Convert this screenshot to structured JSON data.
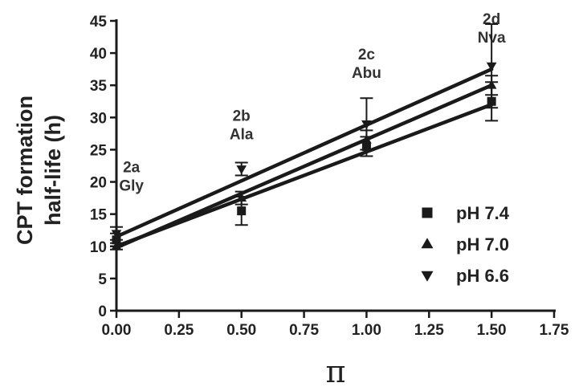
{
  "chart_data": {
    "type": "line",
    "title": "",
    "xlabel": "π",
    "ylabel": [
      "CPT formation",
      "half-life (h)"
    ],
    "xlim": [
      0,
      1.75
    ],
    "ylim": [
      0,
      45
    ],
    "x_ticks": [
      "0.00",
      "0.25",
      "0.50",
      "0.75",
      "1.00",
      "1.25",
      "1.50",
      "1.75"
    ],
    "y_ticks": [
      "0",
      "5",
      "10",
      "15",
      "20",
      "25",
      "30",
      "35",
      "40",
      "45"
    ],
    "grid": false,
    "legend_position": "right",
    "x": [
      0,
      0.5,
      1.0,
      1.5
    ],
    "annotations": [
      {
        "lines": [
          "2a",
          "Gly"
        ],
        "x": 0.06,
        "y": 21.5
      },
      {
        "lines": [
          "2b",
          "Ala"
        ],
        "x": 0.5,
        "y": 29.5
      },
      {
        "lines": [
          "2c",
          "Abu"
        ],
        "x": 1.0,
        "y": 39.0
      },
      {
        "lines": [
          "2d",
          "Nva"
        ],
        "x": 1.5,
        "y": 44.5
      }
    ],
    "series": [
      {
        "name": "pH 7.4",
        "marker": "square",
        "values": [
          11.0,
          15.5,
          25.5,
          32.5
        ],
        "errors": [
          1.0,
          2.2,
          1.5,
          3.0
        ],
        "fit": [
          10.0,
          32.0
        ]
      },
      {
        "name": "pH 7.0",
        "marker": "triangle-up",
        "values": [
          10.0,
          17.5,
          26.5,
          35.0
        ],
        "errors": [
          0.5,
          1.0,
          1.5,
          1.5
        ],
        "fit": [
          9.8,
          35.0
        ]
      },
      {
        "name": "pH 6.6",
        "marker": "triangle-down",
        "values": [
          12.0,
          22.0,
          29.0,
          38.0
        ],
        "errors": [
          1.0,
          1.0,
          4.0,
          6.5
        ],
        "fit": [
          11.5,
          37.5
        ]
      }
    ],
    "colors": {
      "ink": "#1a1a1a"
    }
  }
}
